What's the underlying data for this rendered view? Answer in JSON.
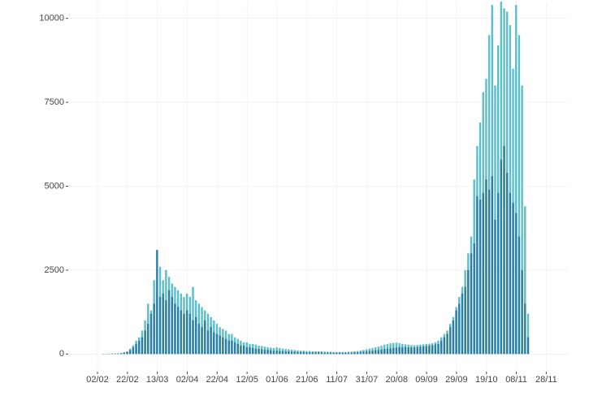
{
  "chart_data": {
    "type": "bar",
    "x": [
      "02/02",
      "04/02",
      "06/02",
      "08/02",
      "10/02",
      "12/02",
      "14/02",
      "16/02",
      "18/02",
      "20/02",
      "22/02",
      "24/02",
      "26/02",
      "28/02",
      "01/03",
      "03/03",
      "05/03",
      "07/03",
      "09/03",
      "11/03",
      "13/03",
      "15/03",
      "17/03",
      "19/03",
      "21/03",
      "23/03",
      "25/03",
      "27/03",
      "29/03",
      "31/03",
      "02/04",
      "04/04",
      "06/04",
      "08/04",
      "10/04",
      "12/04",
      "14/04",
      "16/04",
      "18/04",
      "20/04",
      "22/04",
      "24/04",
      "26/04",
      "28/04",
      "30/04",
      "02/05",
      "04/05",
      "06/05",
      "08/05",
      "10/05",
      "12/05",
      "14/05",
      "16/05",
      "18/05",
      "20/05",
      "22/05",
      "24/05",
      "26/05",
      "28/05",
      "30/05",
      "01/06",
      "03/06",
      "05/06",
      "07/06",
      "09/06",
      "11/06",
      "13/06",
      "15/06",
      "17/06",
      "19/06",
      "21/06",
      "23/06",
      "25/06",
      "27/06",
      "29/06",
      "01/07",
      "03/07",
      "05/07",
      "07/07",
      "09/07",
      "11/07",
      "13/07",
      "15/07",
      "17/07",
      "19/07",
      "21/07",
      "23/07",
      "25/07",
      "27/07",
      "29/07",
      "31/07",
      "02/08",
      "04/08",
      "06/08",
      "08/08",
      "10/08",
      "12/08",
      "14/08",
      "16/08",
      "18/08",
      "20/08",
      "22/08",
      "24/08",
      "26/08",
      "28/08",
      "30/08",
      "01/09",
      "03/09",
      "05/09",
      "07/09",
      "09/09",
      "11/09",
      "13/09",
      "15/09",
      "17/09",
      "19/09",
      "21/09",
      "23/09",
      "25/09",
      "27/09",
      "29/09",
      "01/10",
      "03/10",
      "05/10",
      "07/10",
      "09/10",
      "11/10",
      "13/10",
      "15/10",
      "17/10",
      "19/10",
      "21/10",
      "23/10",
      "25/10",
      "27/10",
      "29/10",
      "31/10",
      "02/11",
      "04/11",
      "06/11",
      "08/11",
      "10/11",
      "12/11",
      "14/11",
      "16/11"
    ],
    "series": [
      {
        "color": "#5bbfca",
        "values": [
          0,
          0,
          10,
          10,
          10,
          15,
          20,
          20,
          30,
          50,
          80,
          160,
          260,
          400,
          500,
          700,
          1000,
          1500,
          1300,
          2200,
          1900,
          2600,
          2200,
          2500,
          2300,
          2100,
          2000,
          1900,
          1800,
          1700,
          1800,
          1700,
          2000,
          1600,
          1500,
          1400,
          1300,
          1200,
          1100,
          1000,
          900,
          800,
          750,
          700,
          600,
          600,
          500,
          450,
          400,
          350,
          350,
          300,
          300,
          280,
          250,
          240,
          220,
          200,
          190,
          180,
          200,
          180,
          160,
          150,
          140,
          130,
          120,
          110,
          100,
          100,
          90,
          90,
          80,
          80,
          80,
          80,
          70,
          70,
          70,
          60,
          60,
          60,
          60,
          60,
          70,
          70,
          80,
          90,
          100,
          120,
          140,
          160,
          180,
          200,
          220,
          250,
          280,
          300,
          320,
          330,
          340,
          320,
          300,
          290,
          280,
          270,
          260,
          270,
          280,
          290,
          300,
          310,
          320,
          350,
          400,
          500,
          600,
          700,
          900,
          1100,
          1400,
          1700,
          2000,
          2500,
          3000,
          3500,
          5200,
          6200,
          6900,
          7800,
          8200,
          9500,
          10400,
          8000,
          9200,
          10500,
          10300,
          10200,
          9800,
          8500,
          10400,
          9500,
          8000,
          4400,
          1200
        ]
      },
      {
        "color": "#2b7ea3",
        "values": [
          0,
          0,
          5,
          5,
          10,
          10,
          10,
          15,
          20,
          40,
          60,
          120,
          200,
          300,
          400,
          500,
          700,
          900,
          1200,
          1500,
          3100,
          1700,
          1800,
          1600,
          1900,
          1700,
          1500,
          1400,
          1300,
          1200,
          1300,
          1200,
          1000,
          1100,
          900,
          800,
          1000,
          700,
          800,
          650,
          600,
          550,
          500,
          450,
          400,
          400,
          350,
          300,
          250,
          250,
          200,
          200,
          180,
          160,
          150,
          140,
          130,
          120,
          110,
          100,
          100,
          90,
          90,
          80,
          80,
          70,
          70,
          60,
          60,
          60,
          50,
          50,
          50,
          50,
          50,
          50,
          40,
          40,
          40,
          40,
          40,
          40,
          40,
          40,
          40,
          40,
          50,
          50,
          60,
          70,
          80,
          90,
          100,
          110,
          120,
          130,
          150,
          160,
          170,
          180,
          190,
          200,
          200,
          210,
          200,
          200,
          200,
          210,
          220,
          230,
          240,
          250,
          260,
          280,
          300,
          400,
          500,
          600,
          800,
          1000,
          1300,
          1500,
          1800,
          2000,
          2500,
          3000,
          3300,
          4700,
          4600,
          4800,
          5200,
          4900,
          5300,
          4000,
          4800,
          5800,
          6200,
          5400,
          4800,
          4500,
          4200,
          3500,
          2500,
          1500,
          500
        ]
      }
    ],
    "xlim": [
      "14/01",
      "13/12"
    ],
    "xticks": [
      "02/02",
      "22/02",
      "13/03",
      "02/04",
      "22/04",
      "12/05",
      "01/06",
      "21/06",
      "11/07",
      "31/07",
      "20/08",
      "09/09",
      "29/09",
      "19/10",
      "08/11",
      "28/11"
    ],
    "ylim": [
      -500,
      10500
    ],
    "yticks": [
      0,
      2500,
      5000,
      7500,
      10000
    ],
    "grid": true
  }
}
